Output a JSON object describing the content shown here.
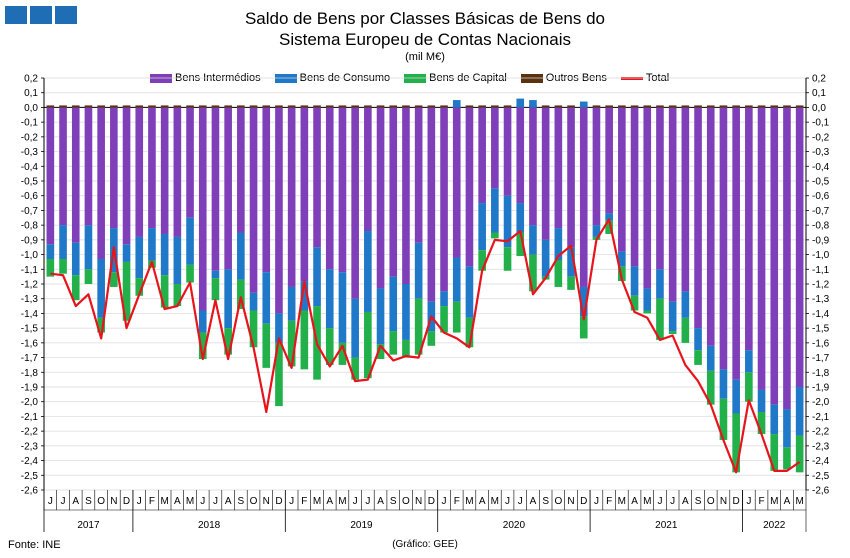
{
  "title_line1": "Saldo de Bens por Classes Básicas de Bens do",
  "title_line2": "Sistema Europeu de Contas Nacionais",
  "unit": "(mil M€)",
  "source": "Fonte: INE",
  "credit": "(Gráfico: GEE)",
  "colors": {
    "logo": "#1f6db5",
    "intermedios": "#7f3fb8",
    "consumo": "#1f78c8",
    "capital": "#22b04b",
    "outros": "#5a3210",
    "total": "#e8141c",
    "grid": "#d9d9d9",
    "axis": "#000000"
  },
  "chart_data": {
    "type": "bar",
    "stacked": true,
    "ylim": [
      -2.6,
      0.2
    ],
    "ytick_step": 0.1,
    "grid": true,
    "legend_position": "top",
    "months": [
      "J",
      "J",
      "A",
      "S",
      "O",
      "N",
      "D",
      "J",
      "F",
      "M",
      "A",
      "M",
      "J",
      "J",
      "A",
      "S",
      "O",
      "N",
      "D",
      "J",
      "F",
      "M",
      "A",
      "M",
      "J",
      "J",
      "A",
      "S",
      "O",
      "N",
      "D",
      "J",
      "F",
      "M",
      "A",
      "M",
      "J",
      "J",
      "A",
      "S",
      "O",
      "N",
      "D",
      "J",
      "F",
      "M",
      "A",
      "M",
      "J",
      "J",
      "A",
      "S",
      "O",
      "N",
      "D",
      "J",
      "F",
      "M",
      "A",
      "M"
    ],
    "years": [
      {
        "label": "2017",
        "start": 0,
        "end": 6
      },
      {
        "label": "2018",
        "start": 7,
        "end": 18
      },
      {
        "label": "2019",
        "start": 19,
        "end": 30
      },
      {
        "label": "2020",
        "start": 31,
        "end": 42
      },
      {
        "label": "2021",
        "start": 43,
        "end": 54
      },
      {
        "label": "2022",
        "start": 55,
        "end": 59
      }
    ],
    "series": [
      {
        "name": "Bens Intermédios",
        "values": [
          -0.93,
          -0.8,
          -0.92,
          -0.8,
          -1.03,
          -0.82,
          -0.93,
          -0.88,
          -0.82,
          -0.86,
          -0.88,
          -0.75,
          -1.38,
          -1.11,
          -1.1,
          -0.85,
          -1.26,
          -1.12,
          -1.4,
          -1.22,
          -1.18,
          -0.95,
          -1.1,
          -1.12,
          -1.3,
          -0.84,
          -1.23,
          -1.15,
          -1.2,
          -0.92,
          -1.32,
          -1.25,
          -1.02,
          -1.08,
          -0.65,
          -0.55,
          -0.6,
          -0.65,
          -0.8,
          -0.9,
          -0.82,
          -0.95,
          -1.22,
          -0.8,
          -0.72,
          -0.98,
          -1.08,
          -1.23,
          -1.1,
          -1.32,
          -1.25,
          -1.5,
          -1.62,
          -1.78,
          -1.85,
          -1.65,
          -1.92,
          -2.02,
          -2.05,
          -1.9
        ]
      },
      {
        "name": "Bens de Consumo",
        "values": [
          -0.1,
          -0.23,
          -0.22,
          -0.3,
          -0.4,
          -0.3,
          -0.12,
          -0.28,
          -0.22,
          -0.28,
          -0.32,
          -0.32,
          -0.15,
          -0.05,
          -0.4,
          -0.32,
          -0.12,
          -0.35,
          -0.2,
          -0.23,
          -0.2,
          -0.4,
          -0.4,
          -0.48,
          -0.4,
          -0.55,
          -0.38,
          -0.37,
          -0.38,
          -0.38,
          -0.2,
          -0.1,
          -0.3,
          -0.35,
          -0.32,
          -0.3,
          -0.35,
          -0.2,
          -0.2,
          -0.25,
          -0.22,
          -0.2,
          -0.2,
          -0.08,
          -0.05,
          -0.1,
          -0.2,
          -0.15,
          -0.2,
          -0.2,
          -0.18,
          -0.15,
          -0.17,
          -0.2,
          -0.23,
          -0.15,
          -0.15,
          -0.2,
          -0.26,
          -0.33
        ]
      },
      {
        "name": "Bens de Capital",
        "values": [
          -0.12,
          -0.1,
          -0.17,
          -0.1,
          -0.1,
          -0.1,
          -0.4,
          -0.12,
          -0.05,
          -0.22,
          -0.15,
          -0.12,
          -0.18,
          -0.15,
          -0.18,
          -0.2,
          -0.25,
          -0.3,
          -0.43,
          -0.31,
          -0.4,
          -0.5,
          -0.25,
          -0.15,
          -0.15,
          -0.45,
          -0.1,
          -0.16,
          -0.12,
          -0.38,
          -0.1,
          -0.18,
          -0.21,
          -0.2,
          -0.14,
          -0.04,
          -0.16,
          -0.16,
          -0.25,
          -0.02,
          -0.18,
          -0.09,
          -0.15,
          -0.02,
          -0.09,
          -0.1,
          -0.1,
          -0.02,
          -0.28,
          -0.02,
          -0.17,
          -0.1,
          -0.23,
          -0.28,
          -0.4,
          -0.2,
          -0.15,
          -0.25,
          -0.15,
          -0.25
        ]
      },
      {
        "name": "Outros Bens",
        "values": [
          0.0,
          0.0,
          0.0,
          0.0,
          0.0,
          0.0,
          0.0,
          0.0,
          0.0,
          0.0,
          0.0,
          0.0,
          0.0,
          0.0,
          0.0,
          0.0,
          0.0,
          0.0,
          0.0,
          0.0,
          0.0,
          0.0,
          0.0,
          0.0,
          0.0,
          0.0,
          0.0,
          0.0,
          0.0,
          0.0,
          0.0,
          0.0,
          0.0,
          0.0,
          0.0,
          0.0,
          0.0,
          0.0,
          0.0,
          0.0,
          0.0,
          0.0,
          0.0,
          0.0,
          0.01,
          0.0,
          0.0,
          0.0,
          0.0,
          0.01,
          0.0,
          0.0,
          0.0,
          0.0,
          0.0,
          0.0,
          0.0,
          0.0,
          0.01,
          0.0
        ]
      },
      {
        "name": "Total",
        "type": "line",
        "values": [
          -1.13,
          -1.14,
          -1.35,
          -1.27,
          -1.57,
          -0.95,
          -1.5,
          -1.27,
          -1.05,
          -1.37,
          -1.35,
          -1.19,
          -1.71,
          -1.31,
          -1.71,
          -1.29,
          -1.63,
          -2.07,
          -1.57,
          -1.77,
          -1.18,
          -1.61,
          -1.76,
          -1.62,
          -1.86,
          -1.85,
          -1.62,
          -1.72,
          -1.69,
          -1.7,
          -1.42,
          -1.53,
          -1.57,
          -1.63,
          -1.11,
          -0.9,
          -0.91,
          -0.84,
          -1.27,
          -1.16,
          -1.01,
          -0.94,
          -1.44,
          -0.9,
          -0.76,
          -1.17,
          -1.39,
          -1.43,
          -1.58,
          -1.55,
          -1.75,
          -1.86,
          -2.02,
          -2.26,
          -2.48,
          -1.99,
          -2.22,
          -2.47,
          -2.47,
          -2.41
        ]
      }
    ],
    "outros_positive_bars": [
      {
        "index": 32,
        "value": 0.05
      },
      {
        "index": 37,
        "value": 0.06
      },
      {
        "index": 38,
        "value": 0.05
      },
      {
        "index": 42,
        "value": 0.04
      }
    ]
  }
}
